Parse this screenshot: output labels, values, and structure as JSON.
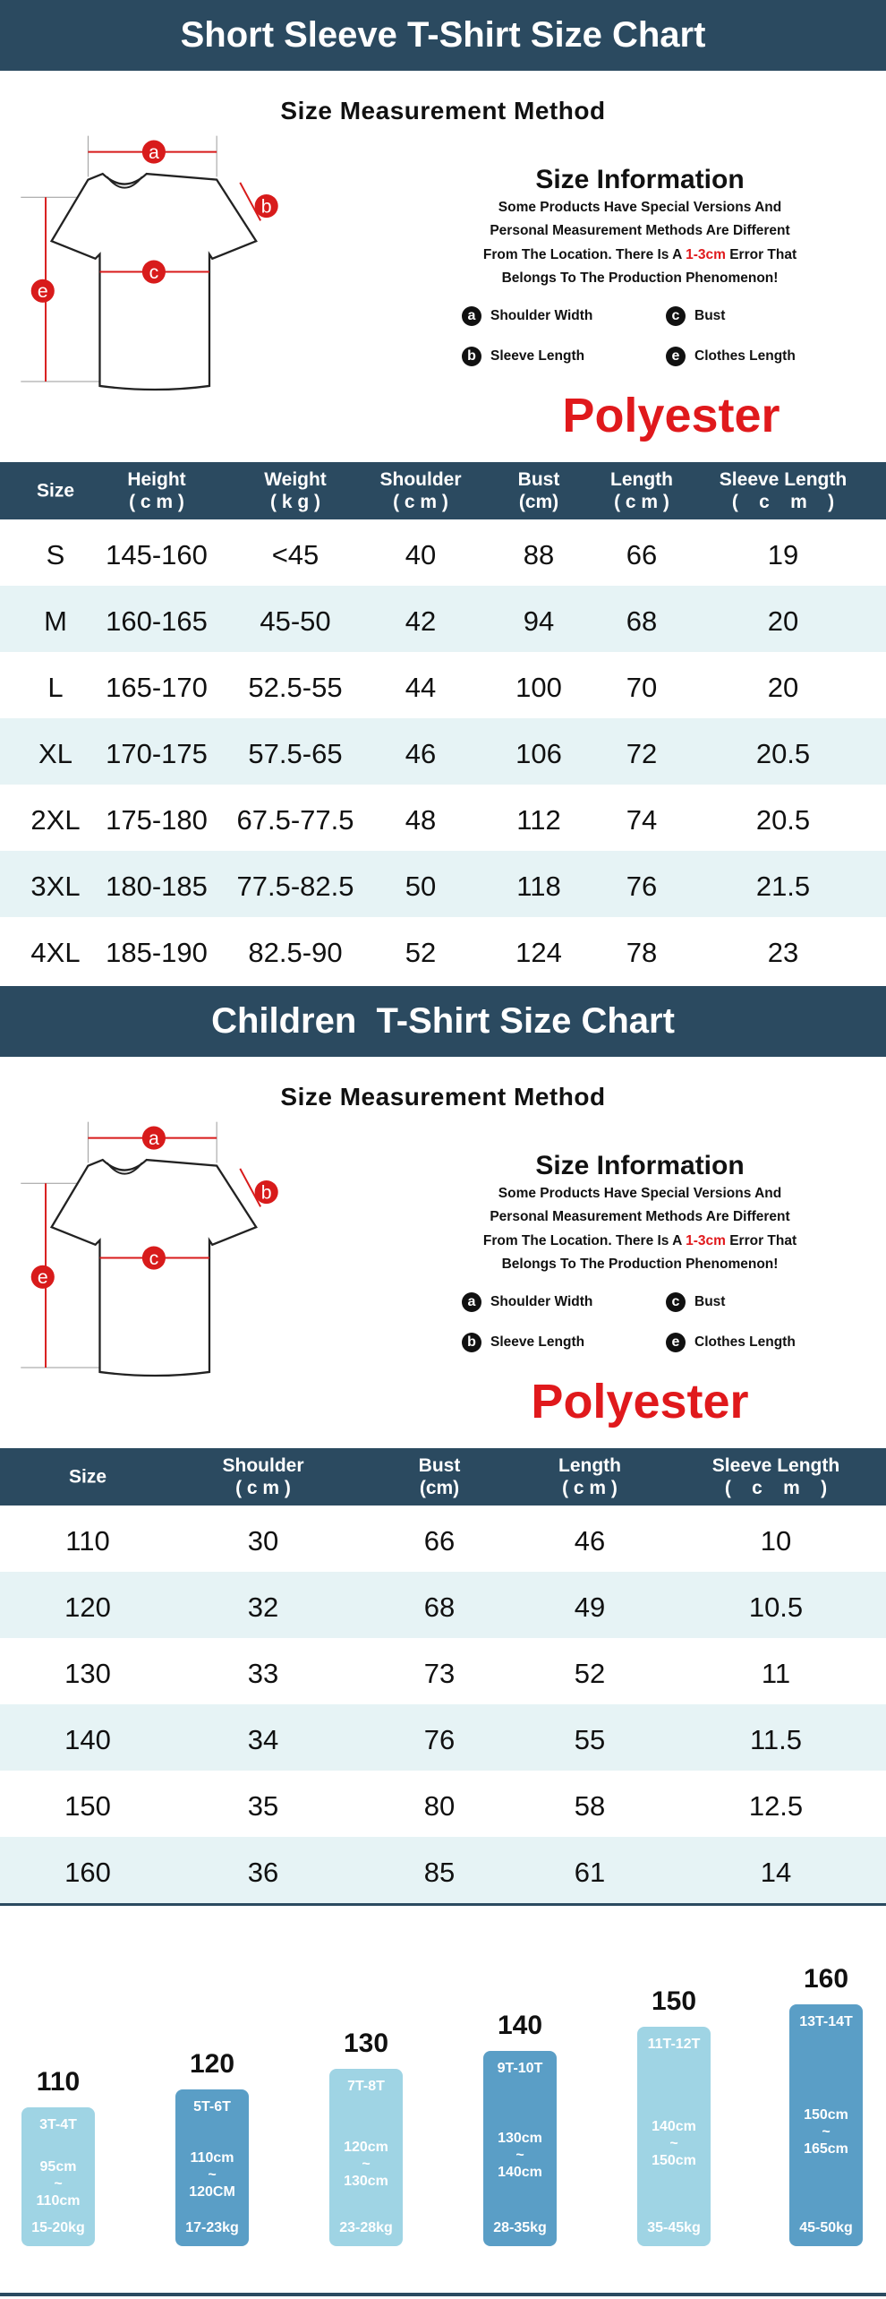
{
  "sections": [
    {
      "title": "Short Sleeve T-Shirt Size Chart",
      "method_title": "Size Measurement Method",
      "diagram_labels": [
        "a",
        "b",
        "c",
        "e"
      ],
      "info_title": "Size Information",
      "info_lines": [
        [
          "Some Products Have Special Versions And"
        ],
        [
          "Personal Measurement Methods Are Different"
        ],
        [
          "From The Location. There Is A ",
          "1-3cm",
          " Error That"
        ],
        [
          "Belongs To The Production Phenomenon!"
        ]
      ],
      "legend": [
        {
          "letter": "a",
          "text": "Shoulder Width"
        },
        {
          "letter": "c",
          "text": "Bust"
        },
        {
          "letter": "b",
          "text": "Sleeve Length"
        },
        {
          "letter": "e",
          "text": "Clothes Length"
        }
      ],
      "material": "Polyester",
      "columns": [
        [
          "Size"
        ],
        [
          "Height",
          "( c m )"
        ],
        [
          "Weight",
          "( k g )"
        ],
        [
          "Shoulder",
          "( c m )"
        ],
        [
          "Bust",
          "(cm)"
        ],
        [
          "Length",
          "( c m )"
        ],
        [
          "Sleeve Length",
          "(    c    m    )"
        ]
      ],
      "rows": [
        [
          "S",
          "145-160",
          "<45",
          40,
          88,
          66,
          19
        ],
        [
          "M",
          "160-165",
          "45-50",
          42,
          94,
          68,
          20
        ],
        [
          "L",
          "165-170",
          "52.5-55",
          44,
          100,
          70,
          20
        ],
        [
          "XL",
          "170-175",
          "57.5-65",
          46,
          106,
          72,
          20.5
        ],
        [
          "2XL",
          "175-180",
          "67.5-77.5",
          48,
          112,
          74,
          20.5
        ],
        [
          "3XL",
          "180-185",
          "77.5-82.5",
          50,
          118,
          76,
          21.5
        ],
        [
          "4XL",
          "185-190",
          "82.5-90",
          52,
          124,
          78,
          23
        ]
      ]
    },
    {
      "title": "Children  T-Shirt Size Chart",
      "method_title": "Size Measurement Method",
      "diagram_labels": [
        "a",
        "b",
        "c",
        "e"
      ],
      "info_title": "Size Information",
      "info_lines": [
        [
          "Some Products Have Special Versions And"
        ],
        [
          "Personal Measurement Methods Are Different"
        ],
        [
          "From The Location. There Is A ",
          "1-3cm",
          " Error That"
        ],
        [
          "Belongs To The Production Phenomenon!"
        ]
      ],
      "legend": [
        {
          "letter": "a",
          "text": "Shoulder Width"
        },
        {
          "letter": "c",
          "text": "Bust"
        },
        {
          "letter": "b",
          "text": "Sleeve Length"
        },
        {
          "letter": "e",
          "text": "Clothes Length"
        }
      ],
      "material": "Polyester",
      "columns": [
        [
          "Size"
        ],
        [
          "Shoulder",
          "( c m )"
        ],
        [
          "Bust",
          "(cm)"
        ],
        [
          "Length",
          "( c m )"
        ],
        [
          "Sleeve Length",
          "(    c    m    )"
        ]
      ],
      "rows": [
        [
          110,
          30,
          66,
          46,
          10
        ],
        [
          120,
          32,
          68,
          49,
          10.5
        ],
        [
          130,
          33,
          73,
          52,
          11
        ],
        [
          140,
          34,
          76,
          55,
          11.5
        ],
        [
          150,
          35,
          80,
          58,
          12.5
        ],
        [
          160,
          36,
          85,
          61,
          14
        ]
      ]
    }
  ],
  "size_guide": [
    {
      "size": 110,
      "age": "3T-4T",
      "height": [
        "95cm",
        "~",
        "110cm"
      ],
      "weight": "15-20kg"
    },
    {
      "size": 120,
      "age": "5T-6T",
      "height": [
        "110cm",
        "~",
        "120CM"
      ],
      "weight": "17-23kg"
    },
    {
      "size": 130,
      "age": "7T-8T",
      "height": [
        "120cm",
        "~",
        "130cm"
      ],
      "weight": "23-28kg"
    },
    {
      "size": 140,
      "age": "9T-10T",
      "height": [
        "130cm",
        "~",
        "140cm"
      ],
      "weight": "28-35kg"
    },
    {
      "size": 150,
      "age": "11T-12T",
      "height": [
        "140cm",
        "~",
        "150cm"
      ],
      "weight": "35-45kg"
    },
    {
      "size": 160,
      "age": "13T-14T",
      "height": [
        "150cm",
        "~",
        "165cm"
      ],
      "weight": "45-50kg"
    }
  ]
}
